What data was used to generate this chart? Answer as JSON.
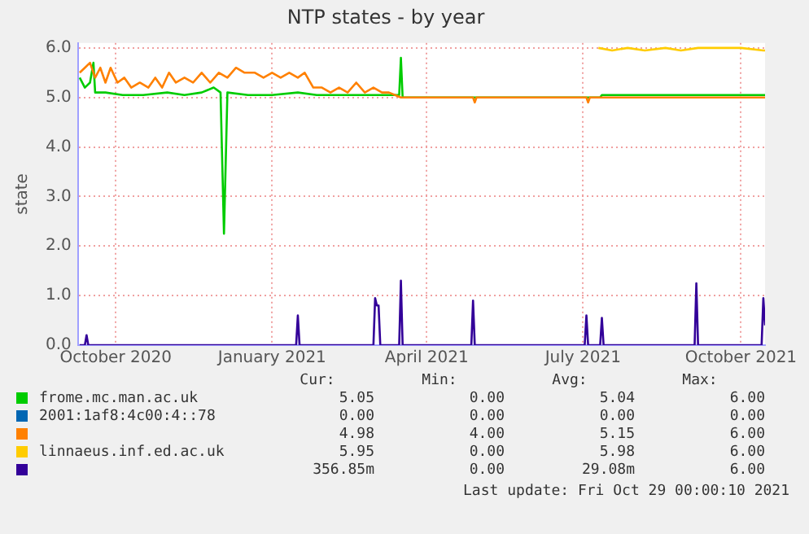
{
  "chart_data": {
    "type": "line",
    "title": "NTP states - by year",
    "ylabel": "state",
    "xlim": [
      "2020-09-24",
      "2021-10-29"
    ],
    "xticks": [
      {
        "value": "2020-10-16",
        "label": "October 2020"
      },
      {
        "value": "2021-01-15",
        "label": "January 2021"
      },
      {
        "value": "2021-04-15",
        "label": "April 2021"
      },
      {
        "value": "2021-07-15",
        "label": "July 2021"
      },
      {
        "value": "2021-10-15",
        "label": "October 2021"
      }
    ],
    "ylim": [
      0,
      6.1
    ],
    "yticks": [
      {
        "value": 0,
        "label": "0.0"
      },
      {
        "value": 1,
        "label": "1.0"
      },
      {
        "value": 2,
        "label": "2.0"
      },
      {
        "value": 3,
        "label": "3.0"
      },
      {
        "value": 4,
        "label": "4.0"
      },
      {
        "value": 5,
        "label": "5.0"
      },
      {
        "value": 6,
        "label": "6.0"
      }
    ],
    "grid": true,
    "legend": "bottom",
    "marker": "none",
    "line_style": "solid",
    "series": [
      {
        "name": "frome.mc.man.ac.uk",
        "color": "#00cc00",
        "x": [
          "2020-09-25",
          "2020-09-28",
          "2020-10-01",
          "2020-10-03",
          "2020-10-04",
          "2020-10-10",
          "2020-10-20",
          "2020-11-01",
          "2020-11-15",
          "2020-11-25",
          "2020-12-05",
          "2020-12-12",
          "2020-12-16",
          "2020-12-18",
          "2020-12-20",
          "2021-01-01",
          "2021-01-15",
          "2021-01-30",
          "2021-02-10",
          "2021-02-20",
          "2021-03-05",
          "2021-03-20",
          "2021-03-30",
          "2021-03-31",
          "2021-04-01",
          "2021-07-25",
          "2021-07-26",
          "2021-08-10",
          "2021-09-01",
          "2021-10-01",
          "2021-10-29"
        ],
        "values": [
          5.4,
          5.2,
          5.3,
          5.7,
          5.1,
          5.1,
          5.05,
          5.05,
          5.1,
          5.05,
          5.1,
          5.2,
          5.1,
          2.25,
          5.1,
          5.05,
          5.05,
          5.1,
          5.05,
          5.05,
          5.05,
          5.05,
          5.05,
          5.8,
          5.0,
          5.0,
          5.05,
          5.05,
          5.05,
          5.05,
          5.05
        ]
      },
      {
        "name": "2001:1af8:4c00:4::78",
        "color": "#0066b3"
      },
      {
        "color": "#ff8000",
        "x": [
          "2020-09-25",
          "2020-09-28",
          "2020-10-01",
          "2020-10-04",
          "2020-10-07",
          "2020-10-10",
          "2020-10-13",
          "2020-10-17",
          "2020-10-21",
          "2020-10-25",
          "2020-10-30",
          "2020-11-04",
          "2020-11-08",
          "2020-11-12",
          "2020-11-16",
          "2020-11-20",
          "2020-11-25",
          "2020-11-30",
          "2020-12-05",
          "2020-12-10",
          "2020-12-15",
          "2020-12-20",
          "2020-12-25",
          "2020-12-30",
          "2021-01-05",
          "2021-01-10",
          "2021-01-15",
          "2021-01-20",
          "2021-01-25",
          "2021-01-30",
          "2021-02-03",
          "2021-02-08",
          "2021-02-13",
          "2021-02-18",
          "2021-02-23",
          "2021-02-28",
          "2021-03-05",
          "2021-03-10",
          "2021-03-15",
          "2021-03-20",
          "2021-03-24",
          "2021-03-31",
          "2021-05-12",
          "2021-05-13",
          "2021-05-14",
          "2021-07-17",
          "2021-07-18",
          "2021-07-19",
          "2021-10-29"
        ],
        "values": [
          5.5,
          5.6,
          5.7,
          5.4,
          5.6,
          5.3,
          5.6,
          5.3,
          5.4,
          5.2,
          5.3,
          5.2,
          5.4,
          5.2,
          5.5,
          5.3,
          5.4,
          5.3,
          5.5,
          5.3,
          5.5,
          5.4,
          5.6,
          5.5,
          5.5,
          5.4,
          5.5,
          5.4,
          5.5,
          5.4,
          5.5,
          5.2,
          5.2,
          5.1,
          5.2,
          5.1,
          5.3,
          5.1,
          5.2,
          5.1,
          5.1,
          5.0,
          5.0,
          4.9,
          5.0,
          5.0,
          4.9,
          5.0,
          5.0
        ]
      },
      {
        "name": "linnaeus.inf.ed.ac.uk",
        "color": "#ffcc00",
        "x": [
          "2021-07-24",
          "2021-08-01",
          "2021-08-10",
          "2021-08-20",
          "2021-09-01",
          "2021-09-10",
          "2021-09-20",
          "2021-10-01",
          "2021-10-15",
          "2021-10-28",
          "2021-10-29"
        ],
        "values": [
          6.0,
          5.95,
          6.0,
          5.95,
          6.0,
          5.95,
          6.0,
          6.0,
          6.0,
          5.95,
          5.95
        ]
      },
      {
        "color": "#330099",
        "x": [
          "2020-09-25",
          "2020-09-28",
          "2020-09-29",
          "2020-09-30",
          "2021-01-29",
          "2021-01-30",
          "2021-01-31",
          "2021-03-15",
          "2021-03-16",
          "2021-03-17",
          "2021-03-18",
          "2021-03-19",
          "2021-03-30",
          "2021-03-31",
          "2021-04-01",
          "2021-05-11",
          "2021-05-12",
          "2021-05-13",
          "2021-07-16",
          "2021-07-17",
          "2021-07-18",
          "2021-07-25",
          "2021-07-26",
          "2021-07-27",
          "2021-09-18",
          "2021-09-19",
          "2021-09-20",
          "2021-10-27",
          "2021-10-28",
          "2021-10-29"
        ],
        "values": [
          0,
          0,
          0.2,
          0,
          0,
          0.6,
          0,
          0,
          0.95,
          0.8,
          0.8,
          0,
          0,
          1.3,
          0,
          0,
          0.9,
          0,
          0,
          0.6,
          0,
          0,
          0.55,
          0,
          0,
          1.25,
          0,
          0,
          0.95,
          0.4
        ]
      }
    ],
    "annotations": [
      "Cur:",
      "Min:",
      "Avg:",
      "Max:",
      "5.05",
      "0.00",
      "5.04",
      "6.00",
      "0.00",
      "0.00",
      "0.00",
      "0.00",
      "4.98",
      "4.00",
      "5.15",
      "6.00",
      "5.95",
      "0.00",
      "5.98",
      "6.00",
      "356.85m",
      "0.00",
      "29.08m",
      "6.00",
      "Last update: Fri Oct 29 00:00:10 2021"
    ]
  }
}
